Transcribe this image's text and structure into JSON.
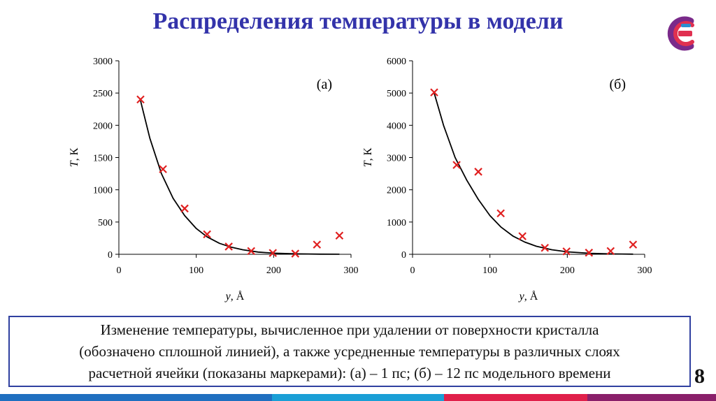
{
  "slide": {
    "title": "Распределения температуры в модели",
    "page_number": "8",
    "caption_lines": [
      "Изменение температуры, вычисленное при удалении от поверхности кристалла",
      "(обозначено сплошной линией), а также усредненные температуры в различных слоях",
      "расчетной ячейки (показаны маркерами): (а) – 1 пс; (б) – 12 пс модельного времени"
    ],
    "colors": {
      "title": "#3333aa",
      "marker": "#e02020",
      "line": "#000000",
      "caption_border": "#3040a0",
      "bottom_bar": [
        "#1f6fc0",
        "#1a9fd6",
        "#e0204a",
        "#8a1f6a"
      ]
    },
    "logo": {
      "icon": "company-logo-icon",
      "colors": [
        "#7a2a8a",
        "#e03050",
        "#2a8fd0"
      ]
    }
  },
  "chart_data": [
    {
      "type": "scatter",
      "panel_label": "(а)",
      "xlabel_italic": "y",
      "xlabel_rest": ", Å",
      "ylabel_italic": "T",
      "ylabel_rest": ", К",
      "xlim": [
        0,
        300
      ],
      "ylim": [
        0,
        3000
      ],
      "xticks": [
        0,
        100,
        200,
        300
      ],
      "yticks": [
        0,
        500,
        1000,
        1500,
        2000,
        2500,
        3000
      ],
      "grid": false,
      "series": [
        {
          "marker": "x",
          "x": [
            28,
            57,
            85,
            114,
            142,
            171,
            199,
            228,
            256,
            285
          ],
          "y": [
            2400,
            1320,
            710,
            310,
            120,
            50,
            20,
            10,
            150,
            290
          ]
        },
        {
          "line": "solid",
          "x": [
            28,
            40,
            55,
            70,
            85,
            100,
            114,
            130,
            145,
            160,
            180,
            200,
            230,
            260,
            285
          ],
          "y": [
            2380,
            1800,
            1250,
            870,
            600,
            400,
            270,
            170,
            110,
            70,
            35,
            17,
            6,
            2,
            1
          ]
        }
      ]
    },
    {
      "type": "scatter",
      "panel_label": "(б)",
      "xlabel_italic": "y",
      "xlabel_rest": ", Å",
      "ylabel_italic": "T",
      "ylabel_rest": ", К",
      "xlim": [
        0,
        300
      ],
      "ylim": [
        0,
        6000
      ],
      "xticks": [
        0,
        100,
        200,
        300
      ],
      "yticks": [
        0,
        1000,
        2000,
        3000,
        4000,
        5000,
        6000
      ],
      "grid": false,
      "series": [
        {
          "marker": "x",
          "x": [
            28,
            57,
            85,
            114,
            142,
            171,
            199,
            228,
            256,
            285
          ],
          "y": [
            5020,
            2770,
            2560,
            1270,
            560,
            200,
            90,
            50,
            100,
            300
          ]
        },
        {
          "line": "solid",
          "x": [
            28,
            40,
            55,
            70,
            85,
            100,
            114,
            130,
            145,
            160,
            180,
            200,
            230,
            260,
            285
          ],
          "y": [
            5000,
            4000,
            3000,
            2300,
            1700,
            1200,
            850,
            560,
            380,
            250,
            140,
            75,
            30,
            10,
            5
          ]
        }
      ]
    }
  ]
}
